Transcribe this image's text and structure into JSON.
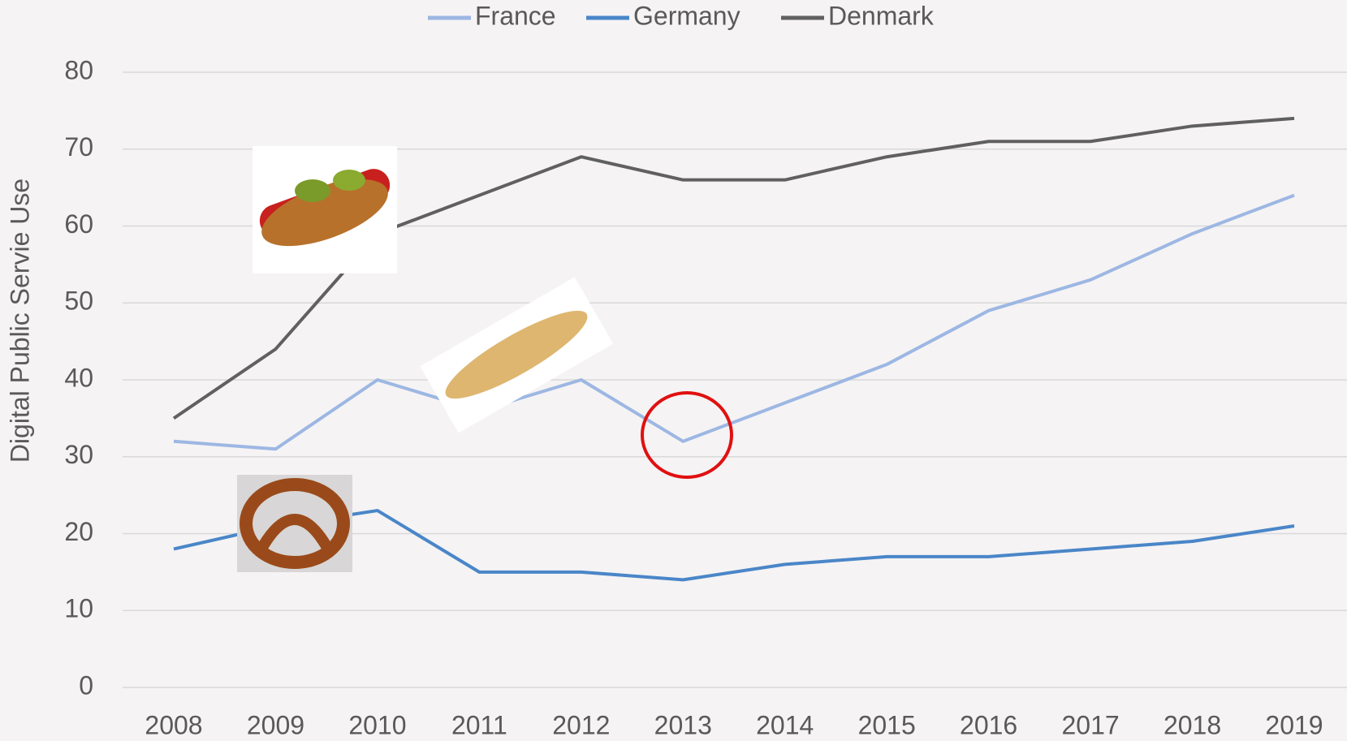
{
  "chart_data": {
    "type": "line",
    "y_label": "Digital Public Servie Use",
    "categories": [
      "2008",
      "2009",
      "2010",
      "2011",
      "2012",
      "2013",
      "2014",
      "2015",
      "2016",
      "2017",
      "2018",
      "2019"
    ],
    "series": [
      {
        "name": "France",
        "color": "#9db7e3",
        "values": [
          32,
          31,
          40,
          36,
          40,
          32,
          37,
          42,
          49,
          53,
          59,
          64
        ]
      },
      {
        "name": "Germany",
        "color": "#4a86c8",
        "values": [
          18,
          21,
          23,
          15,
          15,
          14,
          16,
          17,
          17,
          18,
          19,
          21
        ]
      },
      {
        "name": "Denmark",
        "color": "#606060",
        "values": [
          35,
          44,
          59,
          64,
          69,
          66,
          66,
          69,
          71,
          71,
          73,
          74
        ]
      }
    ],
    "ylim": [
      0,
      80
    ],
    "yticks": [
      0,
      10,
      20,
      30,
      40,
      50,
      60,
      70,
      80
    ],
    "grid": true,
    "legend": "top"
  }
}
